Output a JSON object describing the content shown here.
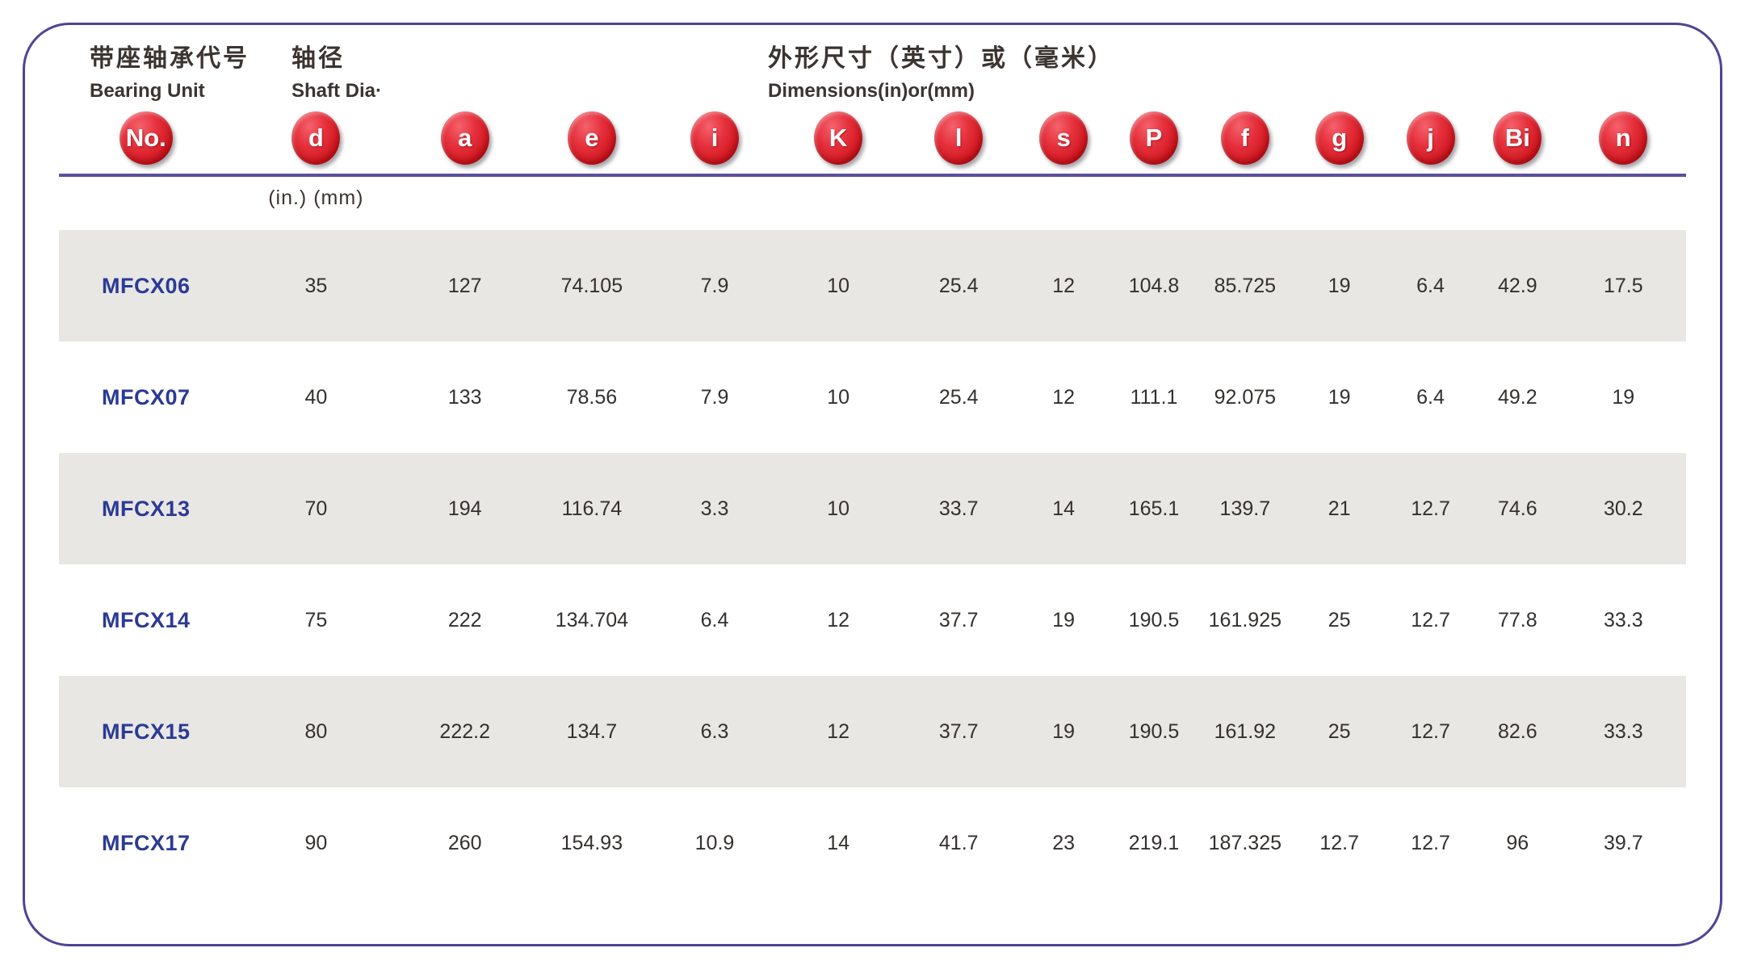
{
  "header": {
    "bearing_unit": {
      "zh": "带座轴承代号",
      "en": "Bearing Unit"
    },
    "shaft_dia": {
      "zh": "轴径",
      "en": "Shaft Dia·"
    },
    "dimensions": {
      "zh": "外形尺寸（英寸）或（毫米）",
      "en": "Dimensions(in)or(mm)"
    },
    "unit_note": "(in.) (mm)"
  },
  "columns": [
    "No.",
    "d",
    "a",
    "e",
    "i",
    "K",
    "l",
    "s",
    "P",
    "f",
    "g",
    "j",
    "Bi",
    "n"
  ],
  "rows": [
    {
      "no": "MFCX06",
      "values": [
        "35",
        "127",
        "74.105",
        "7.9",
        "10",
        "25.4",
        "12",
        "104.8",
        "85.725",
        "19",
        "6.4",
        "42.9",
        "17.5"
      ]
    },
    {
      "no": "MFCX07",
      "values": [
        "40",
        "133",
        "78.56",
        "7.9",
        "10",
        "25.4",
        "12",
        "111.1",
        "92.075",
        "19",
        "6.4",
        "49.2",
        "19"
      ]
    },
    {
      "no": "MFCX13",
      "values": [
        "70",
        "194",
        "116.74",
        "3.3",
        "10",
        "33.7",
        "14",
        "165.1",
        "139.7",
        "21",
        "12.7",
        "74.6",
        "30.2"
      ]
    },
    {
      "no": "MFCX14",
      "values": [
        "75",
        "222",
        "134.704",
        "6.4",
        "12",
        "37.7",
        "19",
        "190.5",
        "161.925",
        "25",
        "12.7",
        "77.8",
        "33.3"
      ]
    },
    {
      "no": "MFCX15",
      "values": [
        "80",
        "222.2",
        "134.7",
        "6.3",
        "12",
        "37.7",
        "19",
        "190.5",
        "161.92",
        "25",
        "12.7",
        "82.6",
        "33.3"
      ]
    },
    {
      "no": "MFCX17",
      "values": [
        "90",
        "260",
        "154.93",
        "10.9",
        "14",
        "41.7",
        "23",
        "219.1",
        "187.325",
        "12.7",
        "12.7",
        "96",
        "39.7"
      ]
    }
  ],
  "colors": {
    "badge_red": "#d8232e",
    "panel_border_purple": "#4e4496",
    "separator_purple": "#5a4f9e",
    "row_stripe_gray": "#e8e7e4",
    "model_navy": "#2b3a94",
    "text_dark": "#3b3431"
  }
}
